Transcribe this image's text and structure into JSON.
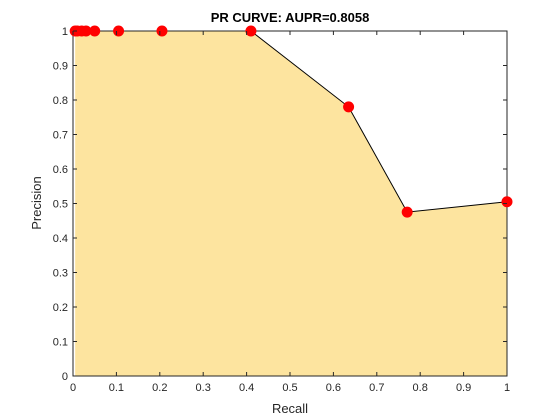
{
  "chart_data": {
    "type": "area",
    "title": "PR CURVE: AUPR=0.8058",
    "xlabel": "Recall",
    "ylabel": "Precision",
    "xlim": [
      0,
      1
    ],
    "ylim": [
      0,
      1
    ],
    "xticks": [
      0,
      0.1,
      0.2,
      0.3,
      0.4,
      0.5,
      0.6,
      0.7,
      0.8,
      0.9,
      1
    ],
    "yticks": [
      0,
      0.1,
      0.2,
      0.3,
      0.4,
      0.5,
      0.6,
      0.7,
      0.8,
      0.9,
      1
    ],
    "xtick_labels": [
      "0",
      "0.1",
      "0.2",
      "0.3",
      "0.4",
      "0.5",
      "0.6",
      "0.7",
      "0.8",
      "0.9",
      "1"
    ],
    "ytick_labels": [
      "0",
      "0.1",
      "0.2",
      "0.3",
      "0.4",
      "0.5",
      "0.6",
      "0.7",
      "0.8",
      "0.9",
      "1"
    ],
    "grid": false,
    "box": true,
    "series": [
      {
        "x": [
          0.005,
          0.01,
          0.02,
          0.03,
          0.05,
          0.105,
          0.205,
          0.41,
          0.635,
          0.77,
          1.0
        ],
        "y": [
          1.0,
          1.0,
          1.0,
          1.0,
          1.0,
          1.0,
          1.0,
          1.0,
          0.78,
          0.475,
          0.505
        ]
      }
    ],
    "colors": {
      "fill": "#FDE49F",
      "line": "#000000",
      "marker": "#FF0000",
      "axis": "#262626"
    }
  }
}
